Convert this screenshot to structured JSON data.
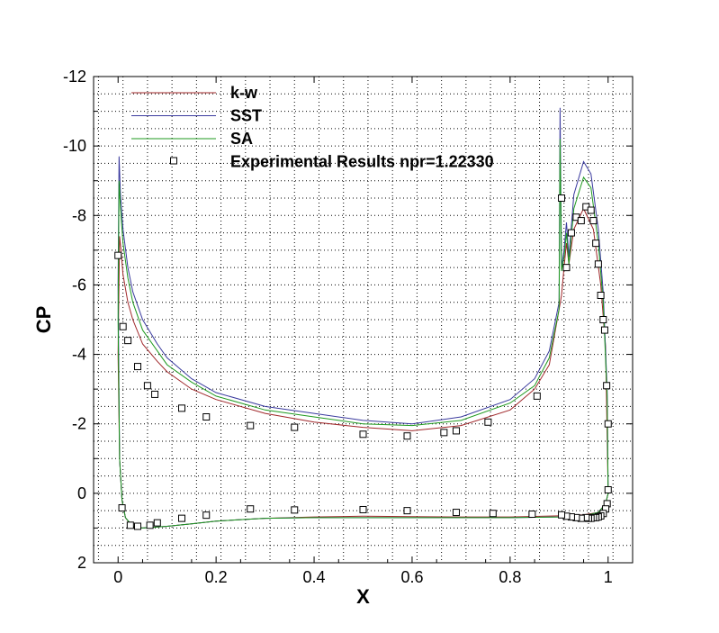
{
  "chart_data": {
    "type": "line",
    "xlabel": "X",
    "ylabel": "CP",
    "xlim": [
      -0.05,
      1.05
    ],
    "ylim": [
      2,
      -12
    ],
    "y_inverted": true,
    "grid": "on (dotted, major and minor)",
    "legend_position": "top-left",
    "x_ticks": [
      "0",
      "0.2",
      "0.4",
      "0.6",
      "0.8",
      "1"
    ],
    "y_ticks": [
      "-12",
      "-10",
      "-8",
      "-6",
      "-4",
      "-2",
      "0",
      "2"
    ],
    "series": [
      {
        "name": "k-w",
        "color": "#a0272a",
        "upper": [
          [
            0.0,
            -4.0
          ],
          [
            0.003,
            -7.4
          ],
          [
            0.006,
            -7.0
          ],
          [
            0.01,
            -6.3
          ],
          [
            0.02,
            -5.5
          ],
          [
            0.03,
            -5.0
          ],
          [
            0.05,
            -4.3
          ],
          [
            0.08,
            -3.8
          ],
          [
            0.1,
            -3.5
          ],
          [
            0.15,
            -3.0
          ],
          [
            0.2,
            -2.7
          ],
          [
            0.3,
            -2.3
          ],
          [
            0.4,
            -2.05
          ],
          [
            0.5,
            -1.9
          ],
          [
            0.6,
            -1.8
          ],
          [
            0.7,
            -1.95
          ],
          [
            0.8,
            -2.4
          ],
          [
            0.85,
            -3.0
          ],
          [
            0.88,
            -3.7
          ],
          [
            0.9,
            -5.3
          ],
          [
            0.905,
            -5.7
          ],
          [
            0.91,
            -6.5
          ],
          [
            0.915,
            -7.2
          ],
          [
            0.92,
            -6.6
          ],
          [
            0.93,
            -7.6
          ],
          [
            0.95,
            -8.2
          ],
          [
            0.97,
            -7.6
          ],
          [
            0.985,
            -6.0
          ],
          [
            0.995,
            -4.2
          ],
          [
            1.0,
            0.0
          ]
        ],
        "lower": [
          [
            0.0,
            -4.0
          ],
          [
            0.003,
            -1.0
          ],
          [
            0.008,
            0.2
          ],
          [
            0.015,
            0.7
          ],
          [
            0.03,
            0.98
          ],
          [
            0.05,
            1.0
          ],
          [
            0.1,
            0.95
          ],
          [
            0.15,
            0.88
          ],
          [
            0.2,
            0.8
          ],
          [
            0.3,
            0.72
          ],
          [
            0.4,
            0.68
          ],
          [
            0.5,
            0.66
          ],
          [
            0.6,
            0.67
          ],
          [
            0.7,
            0.68
          ],
          [
            0.8,
            0.68
          ],
          [
            0.9,
            0.65
          ],
          [
            0.95,
            0.62
          ],
          [
            0.98,
            0.55
          ],
          [
            0.995,
            0.3
          ],
          [
            1.0,
            0.0
          ]
        ]
      },
      {
        "name": "SST",
        "color": "#3a3a9e",
        "upper": [
          [
            0.0,
            -6.0
          ],
          [
            0.002,
            -9.7
          ],
          [
            0.005,
            -8.6
          ],
          [
            0.01,
            -7.6
          ],
          [
            0.02,
            -6.5
          ],
          [
            0.03,
            -5.8
          ],
          [
            0.05,
            -5.0
          ],
          [
            0.08,
            -4.3
          ],
          [
            0.1,
            -3.9
          ],
          [
            0.15,
            -3.3
          ],
          [
            0.2,
            -2.9
          ],
          [
            0.3,
            -2.5
          ],
          [
            0.4,
            -2.3
          ],
          [
            0.5,
            -2.1
          ],
          [
            0.6,
            -2.0
          ],
          [
            0.7,
            -2.2
          ],
          [
            0.8,
            -2.7
          ],
          [
            0.85,
            -3.3
          ],
          [
            0.88,
            -4.1
          ],
          [
            0.9,
            -5.5
          ],
          [
            0.902,
            -11.1
          ],
          [
            0.905,
            -6.5
          ],
          [
            0.91,
            -7.0
          ],
          [
            0.915,
            -7.8
          ],
          [
            0.92,
            -6.8
          ],
          [
            0.93,
            -8.6
          ],
          [
            0.95,
            -9.55
          ],
          [
            0.965,
            -9.2
          ],
          [
            0.98,
            -7.6
          ],
          [
            0.99,
            -5.8
          ],
          [
            0.998,
            -3.0
          ],
          [
            1.0,
            0.0
          ]
        ],
        "lower": [
          [
            0.0,
            -6.0
          ],
          [
            0.003,
            -1.0
          ],
          [
            0.008,
            0.2
          ],
          [
            0.015,
            0.7
          ],
          [
            0.03,
            0.95
          ],
          [
            0.05,
            1.0
          ],
          [
            0.1,
            0.95
          ],
          [
            0.15,
            0.88
          ],
          [
            0.2,
            0.8
          ],
          [
            0.3,
            0.72
          ],
          [
            0.4,
            0.7
          ],
          [
            0.5,
            0.7
          ],
          [
            0.6,
            0.7
          ],
          [
            0.7,
            0.7
          ],
          [
            0.8,
            0.7
          ],
          [
            0.9,
            0.68
          ],
          [
            0.95,
            0.65
          ],
          [
            0.98,
            0.55
          ],
          [
            0.995,
            0.3
          ],
          [
            1.0,
            0.0
          ]
        ]
      },
      {
        "name": "SA",
        "color": "#1f9a1f",
        "upper": [
          [
            0.0,
            -5.0
          ],
          [
            0.002,
            -9.0
          ],
          [
            0.005,
            -8.2
          ],
          [
            0.01,
            -7.2
          ],
          [
            0.02,
            -6.2
          ],
          [
            0.03,
            -5.5
          ],
          [
            0.05,
            -4.7
          ],
          [
            0.08,
            -4.1
          ],
          [
            0.1,
            -3.7
          ],
          [
            0.15,
            -3.2
          ],
          [
            0.2,
            -2.8
          ],
          [
            0.3,
            -2.4
          ],
          [
            0.4,
            -2.2
          ],
          [
            0.5,
            -2.0
          ],
          [
            0.6,
            -1.95
          ],
          [
            0.7,
            -2.1
          ],
          [
            0.8,
            -2.6
          ],
          [
            0.85,
            -3.1
          ],
          [
            0.88,
            -3.9
          ],
          [
            0.9,
            -5.3
          ],
          [
            0.902,
            -10.2
          ],
          [
            0.905,
            -6.4
          ],
          [
            0.91,
            -6.8
          ],
          [
            0.915,
            -7.5
          ],
          [
            0.92,
            -6.6
          ],
          [
            0.93,
            -8.2
          ],
          [
            0.95,
            -9.1
          ],
          [
            0.965,
            -8.8
          ],
          [
            0.98,
            -7.2
          ],
          [
            0.99,
            -5.5
          ],
          [
            0.998,
            -2.8
          ],
          [
            1.0,
            0.0
          ]
        ],
        "lower": [
          [
            0.0,
            -5.0
          ],
          [
            0.003,
            -1.0
          ],
          [
            0.008,
            0.2
          ],
          [
            0.015,
            0.7
          ],
          [
            0.03,
            0.95
          ],
          [
            0.05,
            1.0
          ],
          [
            0.1,
            0.95
          ],
          [
            0.15,
            0.88
          ],
          [
            0.2,
            0.8
          ],
          [
            0.3,
            0.72
          ],
          [
            0.4,
            0.7
          ],
          [
            0.5,
            0.7
          ],
          [
            0.6,
            0.7
          ],
          [
            0.7,
            0.7
          ],
          [
            0.8,
            0.7
          ],
          [
            0.9,
            0.68
          ],
          [
            0.95,
            0.65
          ],
          [
            0.98,
            0.55
          ],
          [
            0.995,
            0.3
          ],
          [
            1.0,
            0.0
          ]
        ]
      },
      {
        "name": "Experimental Results npr=1.22330",
        "marker": "square",
        "color": "#000000",
        "points": [
          [
            0.0,
            -6.85
          ],
          [
            0.01,
            -4.8
          ],
          [
            0.02,
            -4.4
          ],
          [
            0.04,
            -3.65
          ],
          [
            0.06,
            -3.1
          ],
          [
            0.075,
            -2.85
          ],
          [
            0.13,
            -2.45
          ],
          [
            0.18,
            -2.2
          ],
          [
            0.27,
            -1.95
          ],
          [
            0.36,
            -1.9
          ],
          [
            0.5,
            -1.7
          ],
          [
            0.59,
            -1.65
          ],
          [
            0.665,
            -1.75
          ],
          [
            0.69,
            -1.8
          ],
          [
            0.755,
            -2.05
          ],
          [
            0.855,
            -2.8
          ],
          [
            0.905,
            -8.5
          ],
          [
            0.915,
            -6.5
          ],
          [
            0.925,
            -7.5
          ],
          [
            0.935,
            -7.95
          ],
          [
            0.945,
            -7.85
          ],
          [
            0.955,
            -8.25
          ],
          [
            0.965,
            -8.15
          ],
          [
            0.97,
            -7.85
          ],
          [
            0.975,
            -7.2
          ],
          [
            0.98,
            -6.6
          ],
          [
            0.985,
            -5.7
          ],
          [
            0.99,
            -5.0
          ],
          [
            0.993,
            -4.7
          ],
          [
            0.997,
            -3.1
          ],
          [
            1.0,
            -2.0
          ],
          [
            1.0,
            -0.1
          ],
          [
            0.998,
            0.3
          ],
          [
            0.995,
            0.45
          ],
          [
            0.99,
            0.58
          ],
          [
            0.985,
            0.65
          ],
          [
            0.98,
            0.68
          ],
          [
            0.975,
            0.7
          ],
          [
            0.97,
            0.7
          ],
          [
            0.965,
            0.72
          ],
          [
            0.96,
            0.72
          ],
          [
            0.955,
            0.7
          ],
          [
            0.945,
            0.72
          ],
          [
            0.935,
            0.7
          ],
          [
            0.925,
            0.68
          ],
          [
            0.915,
            0.66
          ],
          [
            0.905,
            0.62
          ],
          [
            0.845,
            0.6
          ],
          [
            0.765,
            0.58
          ],
          [
            0.69,
            0.55
          ],
          [
            0.59,
            0.5
          ],
          [
            0.5,
            0.47
          ],
          [
            0.36,
            0.48
          ],
          [
            0.27,
            0.45
          ],
          [
            0.18,
            0.63
          ],
          [
            0.13,
            0.72
          ],
          [
            0.08,
            0.85
          ],
          [
            0.065,
            0.92
          ],
          [
            0.04,
            0.95
          ],
          [
            0.025,
            0.92
          ],
          [
            0.008,
            0.42
          ]
        ]
      }
    ]
  }
}
